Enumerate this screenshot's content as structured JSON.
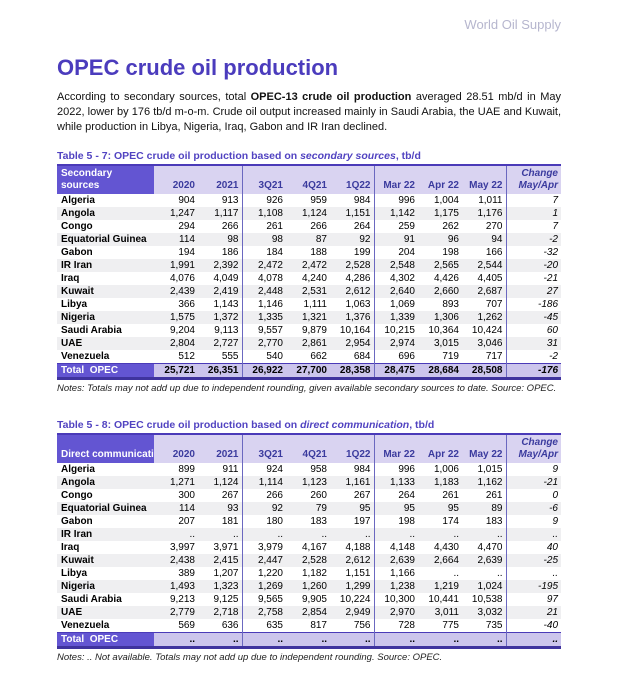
{
  "colors": {
    "accent_purple": "#4b3cbd",
    "caption_purple": "#5143c1",
    "header_box_purple": "#6355d2",
    "header_lavender": "#d9d3f1",
    "total_row_lavender": "#ccc5ec",
    "row_stripe_gray": "#efeff1",
    "column_separator_blue": "#6b68c0",
    "table_border_dark": "#3f339e",
    "watermark_gray": "#b6b6ce"
  },
  "page": {
    "watermark": "World Oil Supply",
    "title": "OPEC crude oil production",
    "intro": {
      "prefix": "According to secondary sources, total ",
      "bold": "OPEC-13 crude oil production",
      "suffix": " averaged 28.51 mb/d in May 2022, lower by 176 tb/d m-o-m. Crude oil output increased mainly in Saudi Arabia, the UAE and Kuwait, while production in Libya, Nigeria, Iraq, Gabon and IR Iran declined."
    }
  },
  "tables": [
    {
      "caption": {
        "prefix": "Table 5 - 7: OPEC crude oil production based on ",
        "italic": "secondary sources",
        "suffix": ", tb/d"
      },
      "label_lines": [
        "Secondary",
        "sources"
      ],
      "columns": [
        "2020",
        "2021",
        "3Q21",
        "4Q21",
        "1Q22",
        "Mar 22",
        "Apr 22",
        "May 22"
      ],
      "change_header": [
        "Change",
        "May/Apr"
      ],
      "rows": [
        {
          "label": "Algeria",
          "values": [
            "904",
            "913",
            "926",
            "959",
            "984",
            "996",
            "1,004",
            "1,011"
          ],
          "change": "7"
        },
        {
          "label": "Angola",
          "values": [
            "1,247",
            "1,117",
            "1,108",
            "1,124",
            "1,151",
            "1,142",
            "1,175",
            "1,176"
          ],
          "change": "1"
        },
        {
          "label": "Congo",
          "values": [
            "294",
            "266",
            "261",
            "266",
            "264",
            "259",
            "262",
            "270"
          ],
          "change": "7"
        },
        {
          "label": "Equatorial Guinea",
          "values": [
            "114",
            "98",
            "98",
            "87",
            "92",
            "91",
            "96",
            "94"
          ],
          "change": "-2"
        },
        {
          "label": "Gabon",
          "values": [
            "194",
            "186",
            "184",
            "188",
            "199",
            "204",
            "198",
            "166"
          ],
          "change": "-32"
        },
        {
          "label": "IR Iran",
          "values": [
            "1,991",
            "2,392",
            "2,472",
            "2,472",
            "2,528",
            "2,548",
            "2,565",
            "2,544"
          ],
          "change": "-20"
        },
        {
          "label": "Iraq",
          "values": [
            "4,076",
            "4,049",
            "4,078",
            "4,240",
            "4,286",
            "4,302",
            "4,426",
            "4,405"
          ],
          "change": "-21"
        },
        {
          "label": "Kuwait",
          "values": [
            "2,439",
            "2,419",
            "2,448",
            "2,531",
            "2,612",
            "2,640",
            "2,660",
            "2,687"
          ],
          "change": "27"
        },
        {
          "label": "Libya",
          "values": [
            "366",
            "1,143",
            "1,146",
            "1,111",
            "1,063",
            "1,069",
            "893",
            "707"
          ],
          "change": "-186"
        },
        {
          "label": "Nigeria",
          "values": [
            "1,575",
            "1,372",
            "1,335",
            "1,321",
            "1,376",
            "1,339",
            "1,306",
            "1,262"
          ],
          "change": "-45"
        },
        {
          "label": "Saudi Arabia",
          "values": [
            "9,204",
            "9,113",
            "9,557",
            "9,879",
            "10,164",
            "10,215",
            "10,364",
            "10,424"
          ],
          "change": "60"
        },
        {
          "label": "UAE",
          "values": [
            "2,804",
            "2,727",
            "2,770",
            "2,861",
            "2,954",
            "2,974",
            "3,015",
            "3,046"
          ],
          "change": "31"
        },
        {
          "label": "Venezuela",
          "values": [
            "512",
            "555",
            "540",
            "662",
            "684",
            "696",
            "719",
            "717"
          ],
          "change": "-2"
        }
      ],
      "total": {
        "label": "Total  OPEC",
        "values": [
          "25,721",
          "26,351",
          "26,922",
          "27,700",
          "28,358",
          "28,475",
          "28,684",
          "28,508"
        ],
        "change": "-176"
      },
      "notes": "Notes: Totals may not add up due to independent rounding, given available secondary sources to date. Source: OPEC."
    },
    {
      "caption": {
        "prefix": "Table 5 - 8: OPEC crude oil production based on ",
        "italic": "direct communication",
        "suffix": ", tb/d"
      },
      "label_lines": [
        "Direct communication"
      ],
      "columns": [
        "2020",
        "2021",
        "3Q21",
        "4Q21",
        "1Q22",
        "Mar 22",
        "Apr 22",
        "May 22"
      ],
      "change_header": [
        "Change",
        "May/Apr"
      ],
      "rows": [
        {
          "label": "Algeria",
          "values": [
            "899",
            "911",
            "924",
            "958",
            "984",
            "996",
            "1,006",
            "1,015"
          ],
          "change": "9"
        },
        {
          "label": "Angola",
          "values": [
            "1,271",
            "1,124",
            "1,114",
            "1,123",
            "1,161",
            "1,133",
            "1,183",
            "1,162"
          ],
          "change": "-21"
        },
        {
          "label": "Congo",
          "values": [
            "300",
            "267",
            "266",
            "260",
            "267",
            "264",
            "261",
            "261"
          ],
          "change": "0"
        },
        {
          "label": "Equatorial Guinea",
          "values": [
            "114",
            "93",
            "92",
            "79",
            "95",
            "95",
            "95",
            "89"
          ],
          "change": "-6"
        },
        {
          "label": "Gabon",
          "values": [
            "207",
            "181",
            "180",
            "183",
            "197",
            "198",
            "174",
            "183"
          ],
          "change": "9"
        },
        {
          "label": "IR Iran",
          "values": [
            "..",
            "..",
            "..",
            "..",
            "..",
            "..",
            "..",
            ".."
          ],
          "change": ".."
        },
        {
          "label": "Iraq",
          "values": [
            "3,997",
            "3,971",
            "3,979",
            "4,167",
            "4,188",
            "4,148",
            "4,430",
            "4,470"
          ],
          "change": "40"
        },
        {
          "label": "Kuwait",
          "values": [
            "2,438",
            "2,415",
            "2,447",
            "2,528",
            "2,612",
            "2,639",
            "2,664",
            "2,639"
          ],
          "change": "-25"
        },
        {
          "label": "Libya",
          "values": [
            "389",
            "1,207",
            "1,220",
            "1,182",
            "1,151",
            "1,166",
            "..",
            ".."
          ],
          "change": ".."
        },
        {
          "label": "Nigeria",
          "values": [
            "1,493",
            "1,323",
            "1,269",
            "1,260",
            "1,299",
            "1,238",
            "1,219",
            "1,024"
          ],
          "change": "-195"
        },
        {
          "label": "Saudi Arabia",
          "values": [
            "9,213",
            "9,125",
            "9,565",
            "9,905",
            "10,224",
            "10,300",
            "10,441",
            "10,538"
          ],
          "change": "97"
        },
        {
          "label": "UAE",
          "values": [
            "2,779",
            "2,718",
            "2,758",
            "2,854",
            "2,949",
            "2,970",
            "3,011",
            "3,032"
          ],
          "change": "21"
        },
        {
          "label": "Venezuela",
          "values": [
            "569",
            "636",
            "635",
            "817",
            "756",
            "728",
            "775",
            "735"
          ],
          "change": "-40"
        }
      ],
      "total": {
        "label": "Total  OPEC",
        "values": [
          "..",
          "..",
          "..",
          "..",
          "..",
          "..",
          "..",
          ".."
        ],
        "change": ".."
      },
      "notes": "Notes:  .. Not available. Totals may not add up due to independent rounding. Source: OPEC."
    }
  ]
}
